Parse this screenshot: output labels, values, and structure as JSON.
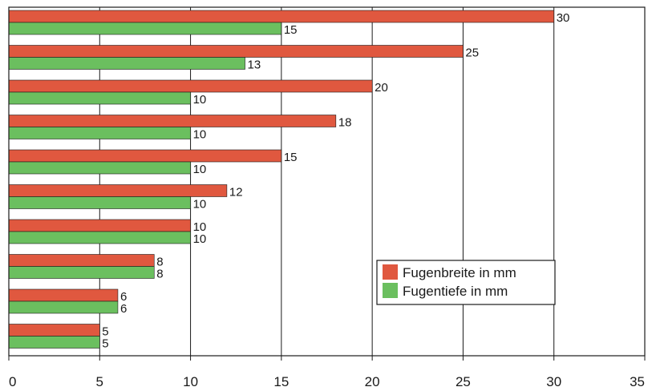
{
  "chart_data": {
    "type": "bar",
    "orientation": "horizontal",
    "title": "",
    "xlabel": "",
    "ylabel": "",
    "xlim": [
      0,
      35
    ],
    "x_ticks": [
      0,
      5,
      10,
      15,
      20,
      25,
      30,
      35
    ],
    "grid": true,
    "legend_position": "bottom-right",
    "categories": [
      "",
      "",
      "",
      "",
      "",
      "",
      "",
      "",
      "",
      ""
    ],
    "series": [
      {
        "name": "Fugenbreite in mm",
        "color": "#e0583f",
        "values": [
          30,
          25,
          20,
          18,
          15,
          12,
          10,
          8,
          6,
          5
        ]
      },
      {
        "name": "Fugentiefe in mm",
        "color": "#6bbf5f",
        "values": [
          15,
          13,
          10,
          10,
          10,
          10,
          10,
          8,
          6,
          5
        ]
      }
    ]
  }
}
